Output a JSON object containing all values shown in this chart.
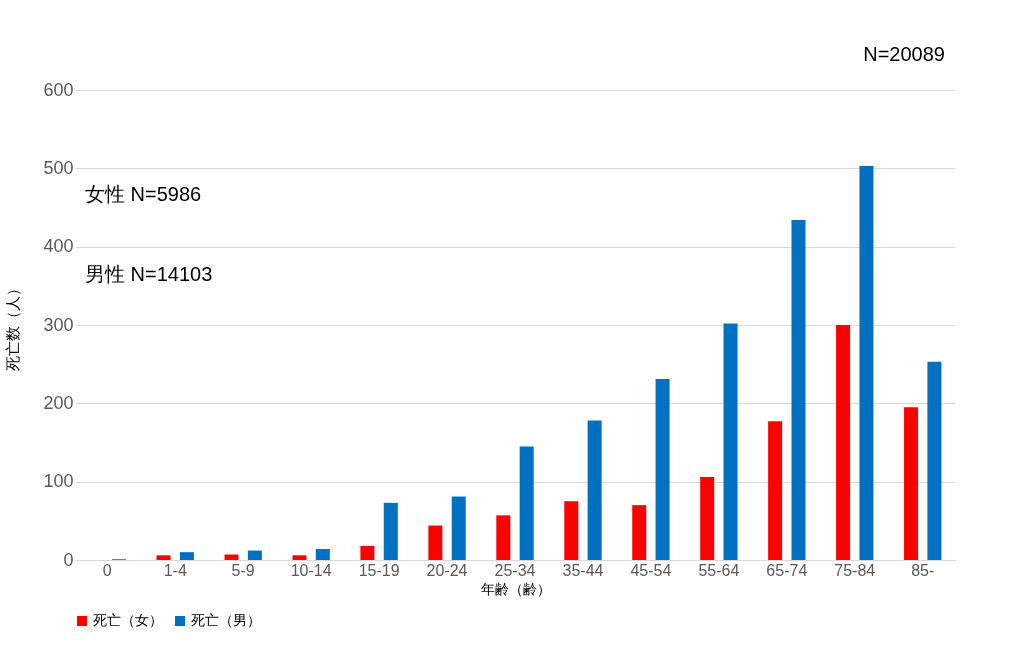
{
  "chart_data": {
    "type": "bar",
    "xlabel": "年齢（齢）",
    "ylabel": "死亡数（人）",
    "categories": [
      "0",
      "1-4",
      "5-9",
      "10-14",
      "15-19",
      "20-24",
      "25-34",
      "35-44",
      "45-54",
      "55-64",
      "65-74",
      "75-84",
      "85-"
    ],
    "series": [
      {
        "name": "死亡（女）",
        "color": "#ff0000",
        "values": [
          0,
          6,
          7,
          6,
          18,
          44,
          57,
          75,
          70,
          106,
          177,
          300,
          195
        ]
      },
      {
        "name": "死亡（男）",
        "color": "#0070c0",
        "values": [
          1,
          10,
          12,
          14,
          73,
          81,
          145,
          178,
          231,
          302,
          434,
          503,
          253
        ]
      }
    ],
    "ylim": [
      0,
      600
    ],
    "yticks": [
      0,
      100,
      200,
      300,
      400,
      500,
      600
    ],
    "grid": "y",
    "legend": "bottom left",
    "annotations": [
      "N=20089",
      "女性 N=5986",
      "男性 N=14103"
    ]
  }
}
